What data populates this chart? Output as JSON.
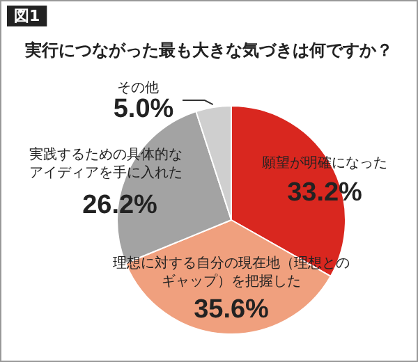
{
  "chart_data": {
    "type": "pie",
    "title": "実行につながった最も大きな気づきは何ですか？",
    "annotations": [
      "図1"
    ],
    "categories": [
      "願望が明確になった",
      "理想に対する自分の現在地（理想とのギャップ）を把握した",
      "実践するための具体的なアイディアを手に入れた",
      "その他"
    ],
    "values": [
      33.2,
      35.6,
      26.2,
      5.0
    ],
    "value_labels": [
      "33.2%",
      "35.6%",
      "26.2%",
      "5.0%"
    ],
    "colors": [
      "#d9271f",
      "#f0a07e",
      "#a3a3a3",
      "#cfcfcf"
    ],
    "legend": false
  }
}
